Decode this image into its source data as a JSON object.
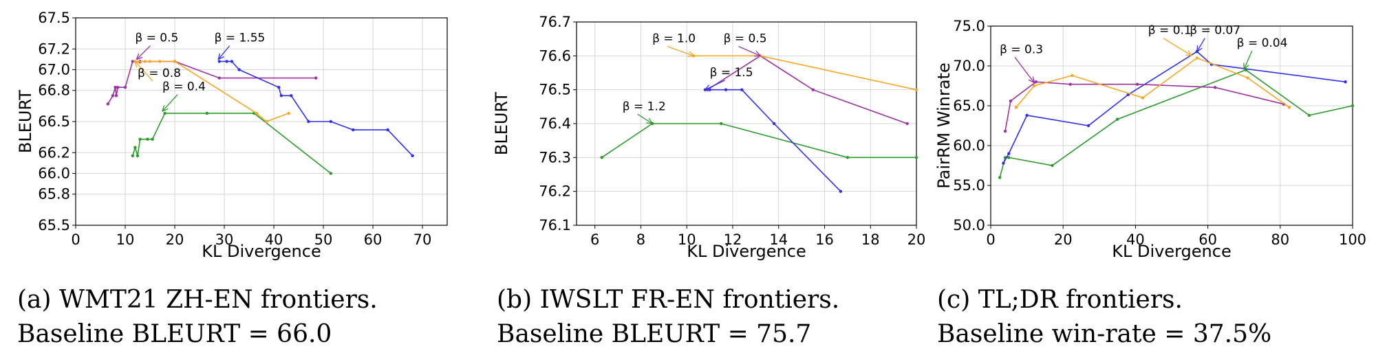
{
  "chart_data": [
    {
      "type": "line",
      "xlabel": "KL Divergence",
      "ylabel": "BLEURT",
      "xlim": [
        0,
        75
      ],
      "ylim": [
        65.5,
        67.5
      ],
      "xticks": [
        "0",
        "10",
        "20",
        "30",
        "40",
        "50",
        "60",
        "70"
      ],
      "yticks": [
        "65.5",
        "65.8",
        "66.0",
        "66.2",
        "66.5",
        "66.8",
        "67.0",
        "67.2",
        "67.5"
      ],
      "grid": true,
      "series": [
        {
          "color": "#9b30a0",
          "x": [
            6.5,
            7.5,
            8,
            8.2,
            8.5,
            10,
            11.5,
            13,
            20,
            29,
            48.5
          ],
          "y": [
            66.67,
            66.75,
            66.83,
            66.75,
            66.83,
            66.83,
            67.08,
            67.08,
            67.08,
            66.92,
            66.92
          ]
        },
        {
          "color": "#2e2ef0",
          "x": [
            29,
            30.5,
            31.5,
            33,
            41,
            41.5,
            43.5,
            47,
            51.5,
            56,
            63,
            68
          ],
          "y": [
            67.08,
            67.08,
            67.08,
            67.0,
            66.83,
            66.75,
            66.75,
            66.5,
            66.5,
            66.42,
            66.42,
            66.17
          ]
        },
        {
          "color": "#2a9a2a",
          "x": [
            11.5,
            12,
            12.5,
            13,
            14.5,
            15.5,
            18,
            26.5,
            36,
            51.5
          ],
          "y": [
            66.17,
            66.25,
            66.17,
            66.33,
            66.33,
            66.33,
            66.58,
            66.58,
            66.58,
            66.0
          ]
        },
        {
          "color": "#f5a623",
          "x": [
            12,
            14,
            15,
            17,
            20,
            36.5,
            38.5,
            43
          ],
          "y": [
            67.08,
            67.08,
            67.08,
            67.08,
            67.08,
            66.58,
            66.5,
            66.58
          ]
        }
      ],
      "annotations": [
        {
          "text": "β = 0.5",
          "color": "#9b30a0"
        },
        {
          "text": "β = 1.55",
          "color": "#2e2ef0"
        },
        {
          "text": "β = 0.8",
          "color": "#f5a623"
        },
        {
          "text": "β = 0.4",
          "color": "#2a9a2a"
        }
      ]
    },
    {
      "type": "line",
      "xlabel": "KL Divergence",
      "ylabel": "BLEURT",
      "xlim": [
        5.2,
        20
      ],
      "ylim": [
        76.1,
        76.7
      ],
      "xticks": [
        "6",
        "8",
        "10",
        "12",
        "14",
        "16",
        "18",
        "20"
      ],
      "yticks": [
        "76.1",
        "76.2",
        "76.3",
        "76.4",
        "76.5",
        "76.6",
        "76.7"
      ],
      "grid": true,
      "series": [
        {
          "color": "#2a9a2a",
          "x": [
            6.3,
            8.5,
            11.5,
            17,
            20
          ],
          "y": [
            76.3,
            76.4,
            76.4,
            76.3,
            76.3
          ]
        },
        {
          "color": "#2e2ef0",
          "x": [
            10.8,
            11,
            11.7,
            12.4,
            13.8,
            16.7
          ],
          "y": [
            76.5,
            76.5,
            76.5,
            76.5,
            76.4,
            76.2
          ]
        },
        {
          "color": "#9b30a0",
          "x": [
            10.9,
            13.2,
            15.5,
            19.6
          ],
          "y": [
            76.5,
            76.6,
            76.5,
            76.4
          ]
        },
        {
          "color": "#f5a623",
          "x": [
            10.3,
            13.2,
            20
          ],
          "y": [
            76.6,
            76.6,
            76.5
          ]
        }
      ],
      "annotations": [
        {
          "text": "β = 1.0",
          "color": "#f5a623"
        },
        {
          "text": "β = 0.5",
          "color": "#9b30a0"
        },
        {
          "text": "β = 1.5",
          "color": "#2e2ef0"
        },
        {
          "text": "β = 1.2",
          "color": "#2a9a2a"
        }
      ]
    },
    {
      "type": "line",
      "xlabel": "KL Divergence",
      "ylabel": "PairRM Winrate",
      "xlim": [
        0,
        100
      ],
      "ylim": [
        50,
        75
      ],
      "xticks": [
        "0",
        "20",
        "40",
        "60",
        "80",
        "100"
      ],
      "yticks": [
        "50.0",
        "55.0",
        "60.0",
        "65.0",
        "70.0",
        "75.0"
      ],
      "grid": true,
      "series": [
        {
          "color": "#2a9a2a",
          "x": [
            2.5,
            4,
            5,
            17,
            35,
            70.5,
            88,
            100
          ],
          "y": [
            56,
            58.5,
            58.5,
            57.5,
            63.3,
            69.5,
            63.8,
            65
          ]
        },
        {
          "color": "#2e2ef0",
          "x": [
            3.5,
            5,
            10,
            27,
            38,
            57,
            61,
            98
          ],
          "y": [
            57.8,
            59,
            63.8,
            62.5,
            66.4,
            71.8,
            70.2,
            68
          ]
        },
        {
          "color": "#9b30a0",
          "x": [
            4,
            5.5,
            12.5,
            22,
            40.5,
            62,
            81
          ],
          "y": [
            61.8,
            65.6,
            68,
            67.7,
            67.7,
            67.3,
            65.2
          ]
        },
        {
          "color": "#f5a623",
          "x": [
            7,
            12,
            22.5,
            42,
            57,
            71,
            82.5
          ],
          "y": [
            64.8,
            67.5,
            68.8,
            66,
            71,
            68.5,
            64.8
          ]
        }
      ],
      "annotations": [
        {
          "text": "β = 0.3",
          "color": "#9b30a0"
        },
        {
          "text": "β = 0.1",
          "color": "#f5a623"
        },
        {
          "text": "β = 0.07",
          "color": "#2e2ef0"
        },
        {
          "text": "β = 0.04",
          "color": "#2a9a2a"
        }
      ]
    }
  ],
  "captions": [
    {
      "line1": "(a) WMT21 ZH-EN frontiers.",
      "line2": "Baseline BLEURT = 66.0"
    },
    {
      "line1": "(b) IWSLT FR-EN frontiers.",
      "line2": "Baseline BLEURT = 75.7"
    },
    {
      "line1": "(c) TL;DR frontiers.",
      "line2": "Baseline win-rate = 37.5%"
    }
  ]
}
